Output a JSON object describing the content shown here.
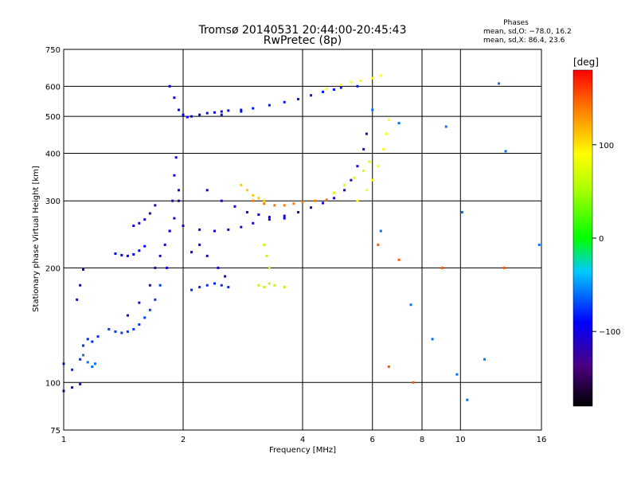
{
  "chart_data": {
    "type": "scatter",
    "title": "Tromsø 20140531 20:44:00-20:45:43",
    "subtitle": "RwPretec (8p)",
    "xlabel": "Frequency [MHz]",
    "ylabel": "Stationary phase Virtual Height [km]",
    "x_scale": "log",
    "y_scale": "log",
    "xlim": [
      1,
      16
    ],
    "ylim": [
      75,
      750
    ],
    "x_ticks": [
      1,
      2,
      4,
      6,
      8,
      10,
      16
    ],
    "x_ticklabels": [
      "1",
      "2",
      "4",
      "6",
      "8",
      "10",
      "16"
    ],
    "y_ticks": [
      75,
      100,
      200,
      300,
      400,
      500,
      600,
      750
    ],
    "y_ticklabels": [
      "75",
      "100",
      "200",
      "300",
      "400",
      "500",
      "600",
      "750"
    ],
    "grid": true,
    "stats": {
      "header": "Phases",
      "line_o": "mean, sd,O: −78.0, 16.2",
      "line_x": "mean, sd,X:  86.4, 23.6"
    },
    "colorbar": {
      "label": "[deg]",
      "range": [
        -180,
        180
      ],
      "ticks": [
        100,
        0,
        -100
      ],
      "ticklabels": [
        "100",
        "0",
        "−100"
      ]
    },
    "series": [
      {
        "x": [
          1.0,
          1.05,
          1.1,
          1.12,
          1.15,
          1.18,
          1.22
        ],
        "y": [
          112,
          108,
          115,
          125,
          130,
          128,
          132
        ],
        "phase": -80
      },
      {
        "x": [
          1.0,
          1.05,
          1.1
        ],
        "y": [
          95,
          97,
          99
        ],
        "phase": -110
      },
      {
        "x": [
          1.12,
          1.15,
          1.18,
          1.2
        ],
        "y": [
          118,
          113,
          110,
          112
        ],
        "phase": -60
      },
      {
        "x": [
          1.08,
          1.1,
          1.12
        ],
        "y": [
          165,
          180,
          198
        ],
        "phase": -100
      },
      {
        "x": [
          1.3,
          1.35,
          1.4,
          1.45,
          1.5,
          1.55,
          1.6,
          1.65,
          1.7,
          1.75
        ],
        "y": [
          138,
          136,
          135,
          136,
          138,
          142,
          148,
          155,
          165,
          180
        ],
        "phase": -75
      },
      {
        "x": [
          1.35,
          1.4,
          1.45,
          1.5,
          1.55,
          1.6
        ],
        "y": [
          218,
          216,
          215,
          217,
          222,
          228
        ],
        "phase": -90
      },
      {
        "x": [
          1.5,
          1.55,
          1.6,
          1.65,
          1.7
        ],
        "y": [
          258,
          262,
          268,
          278,
          292
        ],
        "phase": -105
      },
      {
        "x": [
          1.45,
          1.55,
          1.65,
          1.7,
          1.75,
          1.8,
          1.85,
          1.9,
          1.95
        ],
        "y": [
          150,
          162,
          180,
          200,
          215,
          230,
          250,
          270,
          300
        ],
        "phase": -110
      },
      {
        "x": [
          1.82,
          1.85,
          1.88,
          1.9,
          1.92,
          1.95
        ],
        "y": [
          200,
          250,
          300,
          350,
          390,
          320
        ],
        "phase": -100
      },
      {
        "x": [
          1.85,
          1.9,
          1.95,
          2.0,
          2.05,
          2.1,
          2.2,
          2.3,
          2.4,
          2.5,
          2.6,
          2.8
        ],
        "y": [
          600,
          560,
          520,
          505,
          498,
          500,
          505,
          510,
          512,
          515,
          518,
          520
        ],
        "phase": -95
      },
      {
        "x": [
          2.5,
          2.8,
          3.0,
          3.3,
          3.6,
          3.9,
          4.2,
          4.5,
          4.8,
          5.0,
          5.5
        ],
        "y": [
          505,
          515,
          525,
          535,
          545,
          555,
          568,
          580,
          588,
          595,
          600
        ],
        "phase": -85
      },
      {
        "x": [
          4.6,
          5.0,
          5.3,
          5.6,
          6.0,
          6.3
        ],
        "y": [
          590,
          605,
          615,
          620,
          630,
          640
        ],
        "phase": 90
      },
      {
        "x": [
          2.0,
          2.2,
          2.4,
          2.6,
          2.8,
          3.0,
          3.3,
          3.6,
          3.9,
          4.2,
          4.5,
          4.8,
          5.1,
          5.3,
          5.5,
          5.7,
          5.8
        ],
        "y": [
          258,
          252,
          250,
          252,
          256,
          262,
          268,
          274,
          280,
          288,
          296,
          305,
          320,
          340,
          370,
          410,
          450
        ],
        "phase": -110
      },
      {
        "x": [
          2.3,
          2.5,
          2.7,
          2.9,
          3.1,
          3.3,
          3.6
        ],
        "y": [
          320,
          300,
          290,
          280,
          276,
          272,
          270
        ],
        "phase": -95
      },
      {
        "x": [
          3.0,
          3.2,
          3.4,
          3.6,
          3.8,
          4.0,
          4.3,
          4.6
        ],
        "y": [
          300,
          295,
          292,
          292,
          295,
          298,
          300,
          302
        ],
        "phase": 140
      },
      {
        "x": [
          4.8,
          5.1,
          5.4,
          5.7,
          5.9
        ],
        "y": [
          315,
          330,
          345,
          360,
          380
        ],
        "phase": 75
      },
      {
        "x": [
          5.5,
          5.8,
          6.0,
          6.2,
          6.4,
          6.5,
          6.6
        ],
        "y": [
          300,
          320,
          340,
          370,
          410,
          450,
          490
        ],
        "phase": 90
      },
      {
        "x": [
          2.8,
          2.9,
          3.0,
          3.1,
          3.2
        ],
        "y": [
          330,
          320,
          310,
          305,
          300
        ],
        "phase": 110
      },
      {
        "x": [
          3.1,
          3.2,
          3.3,
          3.4,
          3.6
        ],
        "y": [
          180,
          178,
          182,
          180,
          178
        ],
        "phase": 60
      },
      {
        "x": [
          3.2,
          3.25,
          3.3
        ],
        "y": [
          230,
          215,
          200
        ],
        "phase": 60
      },
      {
        "x": [
          2.1,
          2.2,
          2.3,
          2.4,
          2.5,
          2.6
        ],
        "y": [
          175,
          178,
          180,
          182,
          180,
          178
        ],
        "phase": -80
      },
      {
        "x": [
          2.1,
          2.2,
          2.3,
          2.45,
          2.55
        ],
        "y": [
          220,
          230,
          215,
          200,
          190
        ],
        "phase": -100
      },
      {
        "x": [
          6.0,
          6.3,
          7.0,
          7.5,
          8.5,
          9.2,
          9.8,
          10.1,
          10.4,
          11.5,
          12.5,
          13.0,
          15.8
        ],
        "y": [
          520,
          250,
          480,
          160,
          130,
          470,
          105,
          280,
          90,
          115,
          610,
          405,
          230
        ],
        "phase": -60
      },
      {
        "x": [
          6.2,
          6.6,
          7.0,
          7.6,
          9.0,
          12.9
        ],
        "y": [
          230,
          110,
          210,
          100,
          200,
          200
        ],
        "phase": 150
      }
    ]
  }
}
